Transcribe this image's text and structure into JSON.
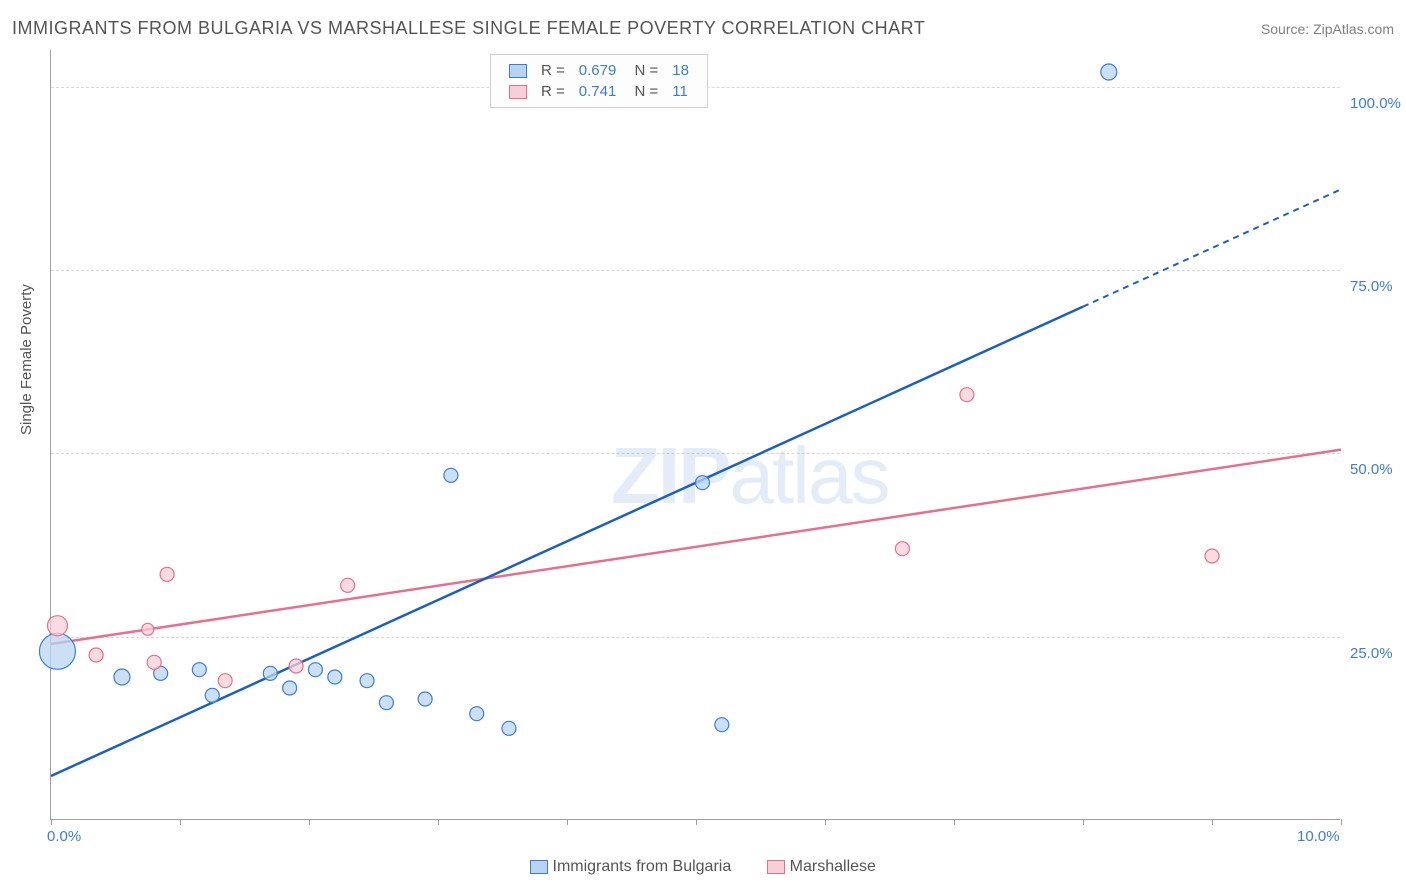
{
  "title": "IMMIGRANTS FROM BULGARIA VS MARSHALLESE SINGLE FEMALE POVERTY CORRELATION CHART",
  "source": "Source: ZipAtlas.com",
  "ylabel": "Single Female Poverty",
  "watermark_a": "ZIP",
  "watermark_b": "atlas",
  "colors": {
    "series1_fill": "#b9d4f2",
    "series1_stroke": "#3b7dd8",
    "series2_fill": "#f7cfd8",
    "series2_stroke": "#e6708c",
    "line1": "#1c5fc4",
    "line2": "#e6708c",
    "text_gray": "#555555",
    "tick_blue": "#3b7dd8",
    "grid": "#d8d8d8"
  },
  "chart": {
    "type": "scatter-with-regression",
    "xlim": [
      0.0,
      10.0
    ],
    "ylim": [
      0.0,
      105.0
    ],
    "xtick_positions": [
      0.0,
      1.0,
      2.0,
      3.0,
      4.0,
      5.0,
      6.0,
      7.0,
      8.0,
      9.0,
      10.0
    ],
    "xtick_labels": {
      "0.0": "0.0%",
      "10.0": "10.0%"
    },
    "ytick_positions": [
      25.0,
      50.0,
      75.0,
      100.0
    ],
    "ytick_labels": [
      "25.0%",
      "50.0%",
      "75.0%",
      "100.0%"
    ],
    "series": [
      {
        "name": "Immigrants from Bulgaria",
        "R": "0.679",
        "N": "18",
        "points": [
          {
            "x": 0.05,
            "y": 23.0,
            "r": 18
          },
          {
            "x": 0.55,
            "y": 19.5,
            "r": 8
          },
          {
            "x": 0.85,
            "y": 20.0,
            "r": 7
          },
          {
            "x": 1.15,
            "y": 20.5,
            "r": 7
          },
          {
            "x": 1.25,
            "y": 17.0,
            "r": 7
          },
          {
            "x": 1.7,
            "y": 20.0,
            "r": 7
          },
          {
            "x": 1.85,
            "y": 18.0,
            "r": 7
          },
          {
            "x": 2.05,
            "y": 20.5,
            "r": 7
          },
          {
            "x": 2.2,
            "y": 19.5,
            "r": 7
          },
          {
            "x": 2.45,
            "y": 19.0,
            "r": 7
          },
          {
            "x": 2.6,
            "y": 16.0,
            "r": 7
          },
          {
            "x": 2.9,
            "y": 16.5,
            "r": 7
          },
          {
            "x": 3.1,
            "y": 47.0,
            "r": 7
          },
          {
            "x": 3.3,
            "y": 14.5,
            "r": 7
          },
          {
            "x": 3.55,
            "y": 12.5,
            "r": 7
          },
          {
            "x": 5.05,
            "y": 46.0,
            "r": 7
          },
          {
            "x": 5.2,
            "y": 13.0,
            "r": 7
          },
          {
            "x": 8.2,
            "y": 102.0,
            "r": 8
          }
        ],
        "regression": {
          "x1": 0.0,
          "y1": 6.0,
          "x2": 8.0,
          "y2": 70.0,
          "dash_to_x": 10.0,
          "dash_to_y": 86.0
        }
      },
      {
        "name": "Marshallese",
        "R": "0.741",
        "N": "11",
        "points": [
          {
            "x": 0.05,
            "y": 26.5,
            "r": 10
          },
          {
            "x": 0.35,
            "y": 22.5,
            "r": 7
          },
          {
            "x": 0.75,
            "y": 26.0,
            "r": 6
          },
          {
            "x": 0.8,
            "y": 21.5,
            "r": 7
          },
          {
            "x": 0.9,
            "y": 33.5,
            "r": 7
          },
          {
            "x": 1.35,
            "y": 19.0,
            "r": 7
          },
          {
            "x": 1.9,
            "y": 21.0,
            "r": 7
          },
          {
            "x": 2.3,
            "y": 32.0,
            "r": 7
          },
          {
            "x": 6.6,
            "y": 37.0,
            "r": 7
          },
          {
            "x": 7.1,
            "y": 58.0,
            "r": 7
          },
          {
            "x": 9.0,
            "y": 36.0,
            "r": 7
          }
        ],
        "regression": {
          "x1": 0.0,
          "y1": 24.0,
          "x2": 10.0,
          "y2": 50.5
        }
      }
    ],
    "legend_bottom": [
      {
        "label": "Immigrants from Bulgaria",
        "series": 0
      },
      {
        "label": "Marshallese",
        "series": 1
      }
    ]
  }
}
